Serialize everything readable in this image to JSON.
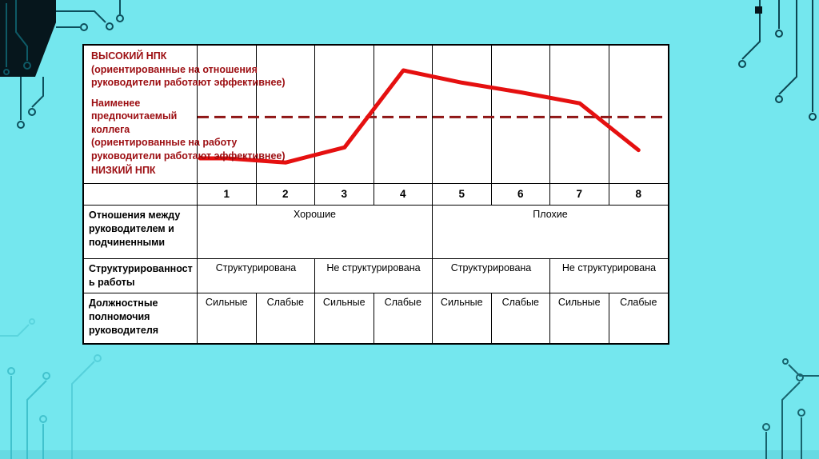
{
  "colors": {
    "background": "#74e7ee",
    "card_background": "#ffffff",
    "table_border": "#000000",
    "red_text": "#9c0d11",
    "line_red": "#e51010",
    "reference_dark_red": "#8f1616",
    "circuit_dark": "#0c4652",
    "circuit_light": "#35b9c6"
  },
  "chart_data": {
    "type": "line",
    "title": "",
    "xlabel": "",
    "ylabel": "",
    "x_categories": [
      "1",
      "2",
      "3",
      "4",
      "5",
      "6",
      "7",
      "8"
    ],
    "values": [
      18,
      15,
      26,
      82,
      73,
      66,
      58,
      24
    ],
    "ylim": [
      0,
      100
    ],
    "reference_line_value": 48,
    "reference_line_style": "dashed",
    "grid": "vertical-only",
    "legend": "none",
    "line_color": "#e51010",
    "reference_line_color": "#8f1616",
    "annotations": {
      "top_left_title": "ВЫСОКИЙ НПК",
      "top_left_note": "(ориентированные на отношения руководители работают эффективнее)",
      "axis_label": "Наименее предпочитаемый коллега",
      "axis_note": "(ориентированные на работу руководители работают эффективнее)",
      "bottom_left_title": "НИЗКИЙ НПК"
    }
  },
  "table": {
    "rows": [
      {
        "label": "Отношения между руководителем и подчиненными",
        "cells": [
          {
            "text": "Хорошие",
            "span": 4
          },
          {
            "text": "Плохие",
            "span": 4
          }
        ]
      },
      {
        "label": "Структурированность работы",
        "cells": [
          {
            "text": "Структурирована",
            "span": 2
          },
          {
            "text": "Не структурирована",
            "span": 2
          },
          {
            "text": "Структурирована",
            "span": 2
          },
          {
            "text": "Не структурирована",
            "span": 2
          }
        ]
      },
      {
        "label": "Должностные полномочия руководителя",
        "cells": [
          {
            "text": "Сильные",
            "span": 1
          },
          {
            "text": "Слабые",
            "span": 1
          },
          {
            "text": "Сильные",
            "span": 1
          },
          {
            "text": "Слабые",
            "span": 1
          },
          {
            "text": "Сильные",
            "span": 1
          },
          {
            "text": "Слабые",
            "span": 1
          },
          {
            "text": "Сильные",
            "span": 1
          },
          {
            "text": "Слабые",
            "span": 1
          }
        ]
      }
    ]
  }
}
